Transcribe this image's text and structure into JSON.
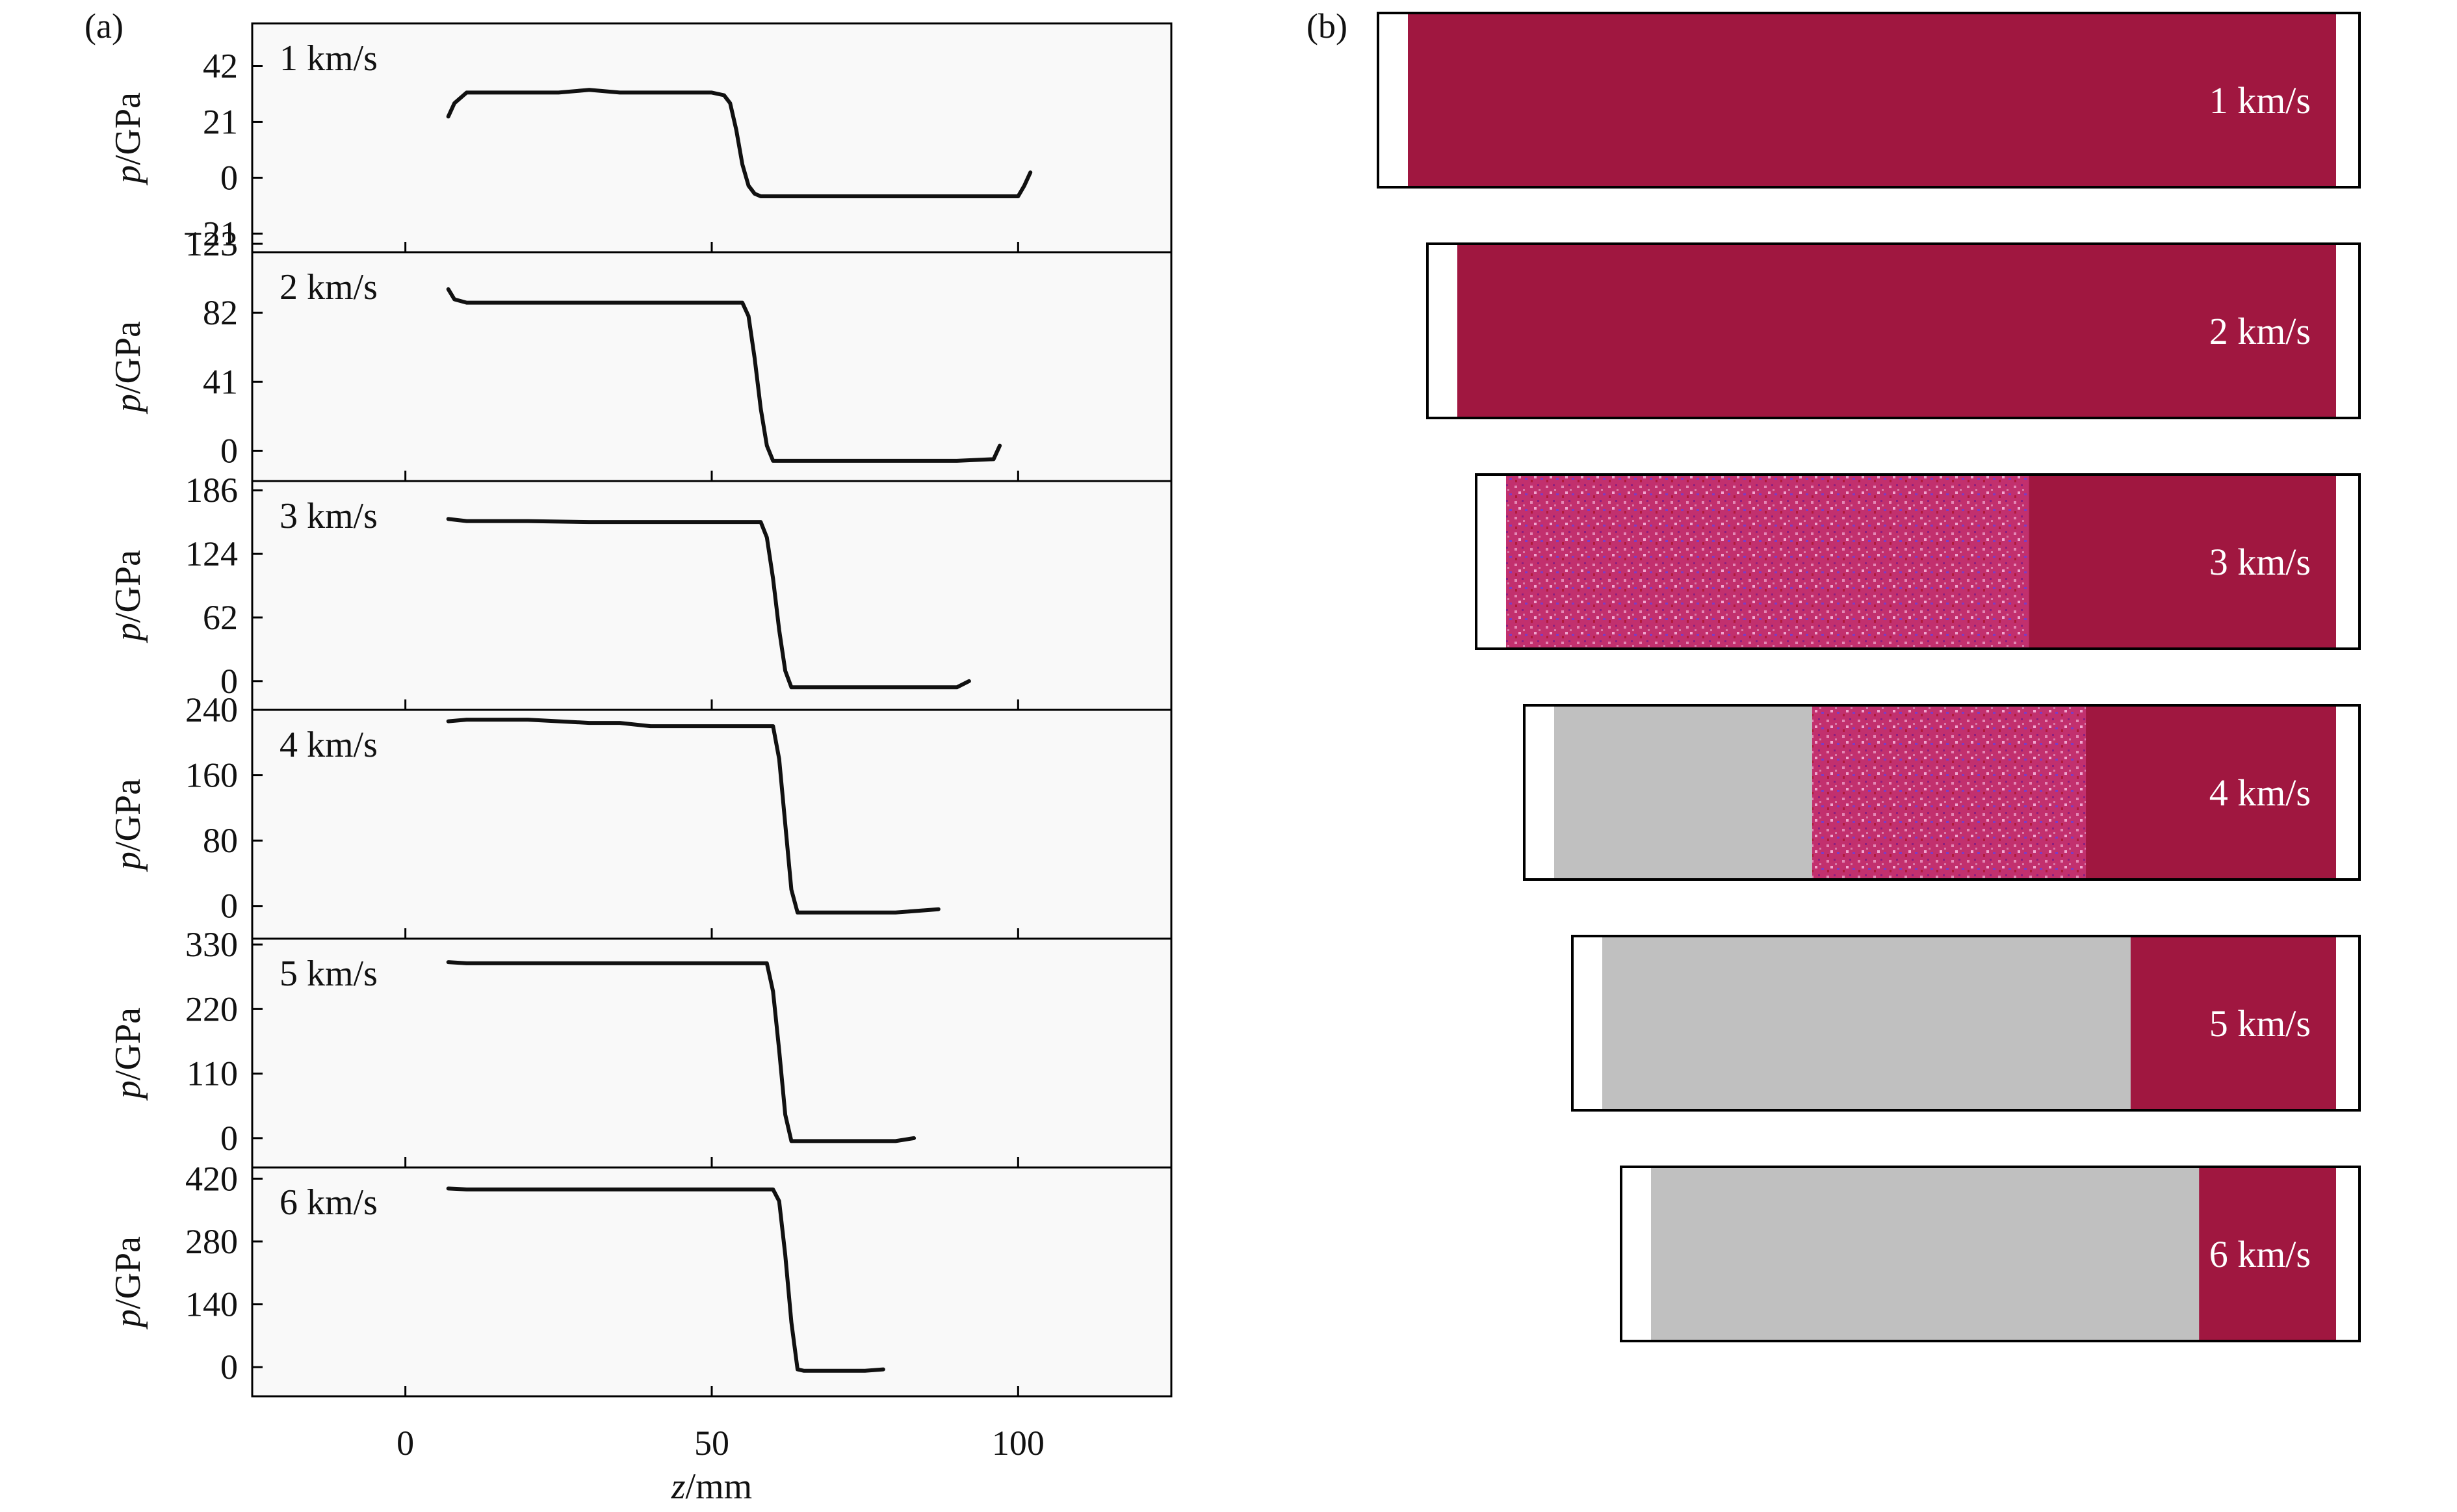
{
  "panel_letters": {
    "a": "(a)",
    "b": "(b)"
  },
  "xlabel": {
    "italic": "z",
    "unit": "/mm"
  },
  "ylabel": {
    "italic": "p",
    "unit": "/GPa"
  },
  "x_tick_labels": [
    "0",
    "50",
    "100"
  ],
  "colors": {
    "intact_material": "#a01740",
    "transformed_material": "#c0c0c0",
    "mixed_region": "#c2306e",
    "trace": "#111111"
  },
  "chart_data": [
    {
      "type": "line",
      "panel": "a",
      "label": "1 km/s",
      "xlim": [
        -25,
        125
      ],
      "ylim": [
        -28,
        58
      ],
      "y_ticks": [
        -21,
        0,
        21,
        42
      ],
      "y_tick_labels": [
        "−21",
        "0",
        "21",
        "42"
      ],
      "x": [
        7,
        8,
        10,
        15,
        20,
        25,
        30,
        35,
        40,
        45,
        50,
        52,
        53,
        54,
        55,
        56,
        57,
        58,
        60,
        70,
        80,
        90,
        95,
        100,
        101,
        102
      ],
      "y": [
        23,
        28,
        32,
        32,
        32,
        32,
        33,
        32,
        32,
        32,
        32,
        31,
        28,
        18,
        5,
        -3,
        -6,
        -7,
        -7,
        -7,
        -7,
        -7,
        -7,
        -7,
        -3,
        2
      ]
    },
    {
      "type": "line",
      "panel": "a",
      "label": "2 km/s",
      "xlim": [
        -25,
        125
      ],
      "ylim": [
        -18,
        118
      ],
      "y_ticks": [
        0,
        41,
        82,
        123
      ],
      "y_tick_labels": [
        "0",
        "41",
        "82",
        "123"
      ],
      "x": [
        7,
        8,
        10,
        20,
        30,
        40,
        50,
        55,
        56,
        57,
        58,
        59,
        60,
        62,
        70,
        80,
        90,
        96,
        97
      ],
      "y": [
        96,
        90,
        88,
        88,
        88,
        88,
        88,
        88,
        80,
        55,
        25,
        3,
        -6,
        -6,
        -6,
        -6,
        -6,
        -5,
        3
      ]
    },
    {
      "type": "line",
      "panel": "a",
      "label": "3 km/s",
      "xlim": [
        -25,
        125
      ],
      "ylim": [
        -28,
        195
      ],
      "y_ticks": [
        0,
        62,
        124,
        186
      ],
      "y_tick_labels": [
        "0",
        "62",
        "124",
        "186"
      ],
      "x": [
        7,
        10,
        20,
        30,
        40,
        50,
        55,
        58,
        59,
        60,
        61,
        62,
        63,
        65,
        70,
        80,
        90,
        92
      ],
      "y": [
        158,
        156,
        156,
        155,
        155,
        155,
        155,
        155,
        140,
        100,
        50,
        10,
        -6,
        -6,
        -6,
        -6,
        -6,
        0
      ]
    },
    {
      "type": "line",
      "panel": "a",
      "label": "4 km/s",
      "xlim": [
        -25,
        125
      ],
      "ylim": [
        -40,
        240
      ],
      "y_ticks": [
        0,
        80,
        160,
        240
      ],
      "y_tick_labels": [
        "0",
        "80",
        "160",
        "240"
      ],
      "x": [
        7,
        10,
        20,
        30,
        35,
        40,
        50,
        55,
        60,
        61,
        62,
        63,
        64,
        65,
        70,
        80,
        87
      ],
      "y": [
        226,
        228,
        228,
        224,
        224,
        220,
        220,
        220,
        220,
        180,
        100,
        20,
        -8,
        -8,
        -8,
        -8,
        -4
      ]
    },
    {
      "type": "line",
      "panel": "a",
      "label": "5 km/s",
      "xlim": [
        -25,
        125
      ],
      "ylim": [
        -50,
        340
      ],
      "y_ticks": [
        0,
        110,
        220,
        330
      ],
      "y_tick_labels": [
        "0",
        "110",
        "220",
        "330"
      ],
      "x": [
        7,
        10,
        20,
        30,
        40,
        50,
        55,
        59,
        60,
        61,
        62,
        63,
        64,
        70,
        80,
        83
      ],
      "y": [
        300,
        298,
        298,
        298,
        298,
        298,
        298,
        298,
        250,
        150,
        40,
        -5,
        -5,
        -5,
        -5,
        0
      ]
    },
    {
      "type": "line",
      "panel": "a",
      "label": "6 km/s",
      "xlim": [
        -25,
        125
      ],
      "ylim": [
        -65,
        445
      ],
      "y_ticks": [
        0,
        140,
        280,
        420
      ],
      "y_tick_labels": [
        "0",
        "140",
        "280",
        "420"
      ],
      "x": [
        7,
        10,
        20,
        30,
        40,
        50,
        55,
        60,
        61,
        62,
        63,
        64,
        65,
        70,
        75,
        78
      ],
      "y": [
        398,
        396,
        396,
        396,
        396,
        396,
        396,
        396,
        370,
        250,
        100,
        -5,
        -8,
        -8,
        -8,
        -5
      ]
    }
  ],
  "simulation_panels": [
    {
      "label": "1 km/s",
      "transformed_fraction": 0.0,
      "mixed_fraction": 0.0
    },
    {
      "label": "2 km/s",
      "transformed_fraction": 0.0,
      "mixed_fraction": 0.0
    },
    {
      "label": "3 km/s",
      "transformed_fraction": 0.0,
      "mixed_fraction": 0.63
    },
    {
      "label": "4 km/s",
      "transformed_fraction": 0.33,
      "mixed_fraction": 0.35
    },
    {
      "label": "5 km/s",
      "transformed_fraction": 0.72,
      "mixed_fraction": 0.0
    },
    {
      "label": "6 km/s",
      "transformed_fraction": 0.8,
      "mixed_fraction": 0.0
    }
  ]
}
